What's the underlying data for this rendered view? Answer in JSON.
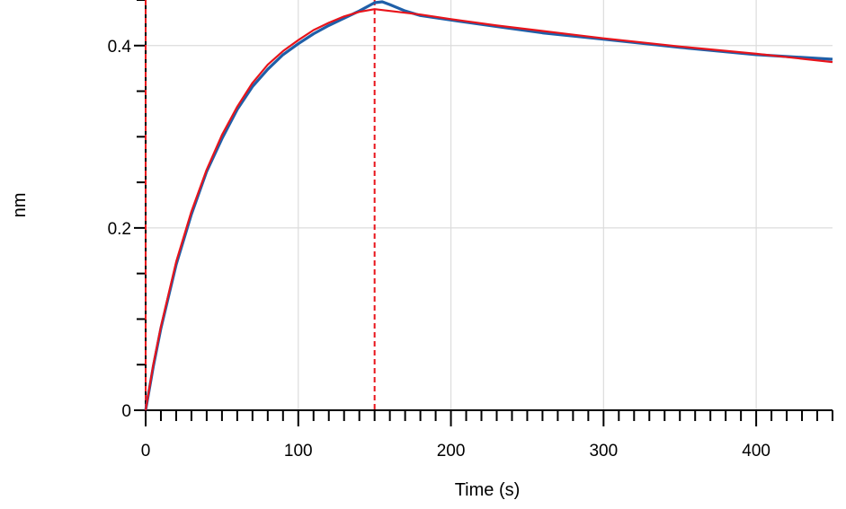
{
  "chart_data": {
    "type": "line",
    "title": "",
    "xlabel": "Time (s)",
    "ylabel": "nm",
    "xlim": [
      0,
      450
    ],
    "ylim": [
      0,
      0.45
    ],
    "x_ticks": [
      0,
      100,
      200,
      300,
      400
    ],
    "x_tick_labels": [
      "0",
      "100",
      "200",
      "300",
      "400"
    ],
    "y_ticks": [
      0,
      0.2,
      0.4
    ],
    "y_tick_labels": [
      "0",
      "0.2",
      "0.4"
    ],
    "grid": true,
    "legend": "none",
    "step_marker_x": [
      0,
      150
    ],
    "series": [
      {
        "color": "#1f5fa8",
        "x": [
          0,
          5,
          10,
          20,
          30,
          40,
          50,
          60,
          70,
          80,
          90,
          100,
          110,
          120,
          130,
          140,
          150,
          155,
          160,
          170,
          180,
          200,
          230,
          260,
          300,
          350,
          400,
          450
        ],
        "y": [
          0.0,
          0.048,
          0.09,
          0.16,
          0.215,
          0.262,
          0.298,
          0.33,
          0.355,
          0.374,
          0.39,
          0.402,
          0.413,
          0.422,
          0.43,
          0.438,
          0.447,
          0.448,
          0.445,
          0.438,
          0.433,
          0.428,
          0.421,
          0.414,
          0.407,
          0.398,
          0.39,
          0.385
        ]
      },
      {
        "color": "#e8141b",
        "x": [
          0,
          5,
          10,
          20,
          30,
          40,
          50,
          60,
          70,
          80,
          90,
          100,
          110,
          120,
          130,
          140,
          150,
          160,
          180,
          200,
          230,
          260,
          300,
          350,
          400,
          450
        ],
        "y": [
          0.0,
          0.05,
          0.092,
          0.163,
          0.218,
          0.264,
          0.302,
          0.333,
          0.359,
          0.379,
          0.394,
          0.406,
          0.417,
          0.425,
          0.432,
          0.437,
          0.44,
          0.438,
          0.434,
          0.429,
          0.422,
          0.416,
          0.408,
          0.399,
          0.391,
          0.382
        ]
      }
    ]
  }
}
